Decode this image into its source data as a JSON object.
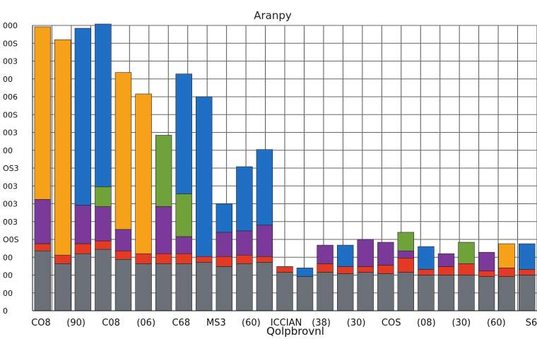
{
  "chart_data": {
    "type": "bar",
    "stacked": true,
    "title": "Aranpy",
    "xlabel": "Qolpbrovnl",
    "ylabel": "",
    "grid": true,
    "legend": "none",
    "ylim": [
      0,
      2000
    ],
    "yticks": [
      "0",
      "00",
      "00",
      "00",
      "O0S",
      "003",
      "003",
      "003",
      "OS3",
      "00",
      "003",
      "00S",
      "006",
      "00",
      "003",
      "00S",
      "000"
    ],
    "xticks": [
      "CO8",
      "(90)",
      "C08",
      "(06)",
      "C68",
      "MS3",
      "(60)",
      "ICCIAN",
      "(38)",
      "(30)",
      "COS",
      "(08)",
      "(30)",
      "(60)",
      "S6"
    ],
    "colors": {
      "orange": "#f7a11a",
      "blue": "#1f6fc4",
      "purple": "#7b3a9a",
      "green": "#6fa33a",
      "red": "#e23a25",
      "yellow": "#f2d12b",
      "teal": "#1aa6a6",
      "brown": "#9a6a3a"
    },
    "series_order": [
      "base",
      "red",
      "purple",
      "green",
      "blue",
      "orange"
    ],
    "bars": [
      {
        "orange": 1210,
        "blue": 0,
        "green": 0,
        "purple": 310,
        "red": 50,
        "base": 420
      },
      {
        "orange": 1510,
        "blue": 0,
        "green": 0,
        "purple": 0,
        "red": 60,
        "base": 330
      },
      {
        "orange": 0,
        "blue": 1240,
        "green": 0,
        "purple": 270,
        "red": 70,
        "base": 400
      },
      {
        "orange": 0,
        "blue": 1140,
        "green": 140,
        "purple": 240,
        "red": 60,
        "base": 430
      },
      {
        "orange": 1100,
        "blue": 0,
        "green": 0,
        "purple": 150,
        "red": 60,
        "base": 360
      },
      {
        "orange": 1120,
        "blue": 0,
        "green": 0,
        "purple": 0,
        "red": 70,
        "base": 330
      },
      {
        "orange": 0,
        "blue": 0,
        "green": 500,
        "purple": 330,
        "red": 70,
        "base": 330
      },
      {
        "orange": 0,
        "blue": 840,
        "green": 300,
        "purple": 120,
        "red": 70,
        "base": 330
      },
      {
        "orange": 0,
        "blue": 1120,
        "green": 0,
        "purple": 0,
        "red": 40,
        "base": 340
      },
      {
        "orange": 0,
        "blue": 200,
        "green": 0,
        "purple": 170,
        "red": 70,
        "base": 310
      },
      {
        "orange": 0,
        "blue": 450,
        "green": 0,
        "purple": 170,
        "red": 60,
        "base": 330
      },
      {
        "orange": 0,
        "blue": 530,
        "green": 0,
        "purple": 220,
        "red": 40,
        "base": 340
      },
      {
        "orange": 0,
        "blue": 0,
        "green": 0,
        "purple": 0,
        "red": 40,
        "base": 270
      },
      {
        "orange": 0,
        "blue": 60,
        "green": 0,
        "purple": 0,
        "red": 0,
        "base": 240
      },
      {
        "orange": 0,
        "blue": 0,
        "green": 0,
        "purple": 130,
        "red": 60,
        "base": 270
      },
      {
        "orange": 0,
        "blue": 150,
        "green": 0,
        "purple": 0,
        "red": 50,
        "base": 260
      },
      {
        "orange": 0,
        "blue": 0,
        "green": 0,
        "purple": 190,
        "red": 40,
        "base": 270
      },
      {
        "orange": 0,
        "blue": 0,
        "green": 0,
        "purple": 160,
        "red": 60,
        "base": 260
      },
      {
        "orange": 0,
        "blue": 0,
        "green": 130,
        "purple": 50,
        "red": 100,
        "base": 270
      },
      {
        "orange": 0,
        "blue": 160,
        "green": 0,
        "purple": 0,
        "red": 40,
        "base": 250
      },
      {
        "orange": 0,
        "blue": 0,
        "green": 0,
        "purple": 90,
        "red": 60,
        "base": 250
      },
      {
        "orange": 0,
        "blue": 0,
        "green": 150,
        "purple": 0,
        "red": 80,
        "base": 250
      },
      {
        "orange": 0,
        "blue": 0,
        "green": 0,
        "purple": 130,
        "red": 40,
        "base": 240
      },
      {
        "orange": 170,
        "blue": 0,
        "green": 0,
        "purple": 0,
        "red": 60,
        "base": 240
      },
      {
        "orange": 0,
        "blue": 180,
        "green": 0,
        "purple": 0,
        "red": 40,
        "base": 250
      }
    ]
  }
}
